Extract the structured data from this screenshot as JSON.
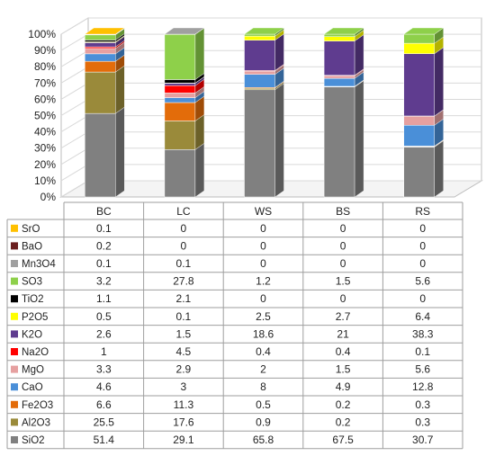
{
  "chart_data": {
    "type": "bar",
    "stacked": true,
    "percent_stacked": true,
    "three_d": true,
    "categories": [
      "BC",
      "LC",
      "WS",
      "BS",
      "RS"
    ],
    "y_ticks": [
      "0%",
      "10%",
      "20%",
      "30%",
      "40%",
      "50%",
      "60%",
      "70%",
      "80%",
      "90%",
      "100%"
    ],
    "ylim": [
      0,
      100
    ],
    "title": "",
    "xlabel": "",
    "ylabel": "",
    "data_table": true,
    "series": [
      {
        "name": "SiO2",
        "color": "#808080",
        "values": [
          51.4,
          29.1,
          65.8,
          67.5,
          30.7
        ]
      },
      {
        "name": "Al2O3",
        "color": "#9a8a3a",
        "values": [
          25.5,
          17.6,
          0.9,
          0.2,
          0.3
        ]
      },
      {
        "name": "Fe2O3",
        "color": "#e36c0a",
        "values": [
          6.6,
          11.3,
          0.5,
          0.2,
          0.3
        ]
      },
      {
        "name": "CaO",
        "color": "#4a8fd8",
        "values": [
          4.6,
          3,
          8,
          4.9,
          12.8
        ]
      },
      {
        "name": "MgO",
        "color": "#e6a0a0",
        "values": [
          3.3,
          2.9,
          2,
          1.5,
          5.6
        ]
      },
      {
        "name": "Na2O",
        "color": "#ff0000",
        "values": [
          1,
          4.5,
          0.4,
          0.4,
          0.1
        ]
      },
      {
        "name": "K2O",
        "color": "#5f3c8f",
        "values": [
          2.6,
          1.5,
          18.6,
          21,
          38.3
        ]
      },
      {
        "name": "P2O5",
        "color": "#ffff00",
        "values": [
          0.5,
          0.1,
          2.5,
          2.7,
          6.4
        ]
      },
      {
        "name": "TiO2",
        "color": "#000000",
        "values": [
          1.1,
          2.1,
          0,
          0,
          0
        ]
      },
      {
        "name": "SO3",
        "color": "#8ed04a",
        "values": [
          3.2,
          27.8,
          1.2,
          1.5,
          5.6
        ]
      },
      {
        "name": "Mn3O4",
        "color": "#a0a0a0",
        "values": [
          0.1,
          0.1,
          0,
          0,
          0
        ]
      },
      {
        "name": "BaO",
        "color": "#6b1f1f",
        "values": [
          0.2,
          0,
          0,
          0,
          0
        ]
      },
      {
        "name": "SrO",
        "color": "#ffc000",
        "values": [
          0.1,
          0,
          0,
          0,
          0
        ]
      }
    ]
  }
}
